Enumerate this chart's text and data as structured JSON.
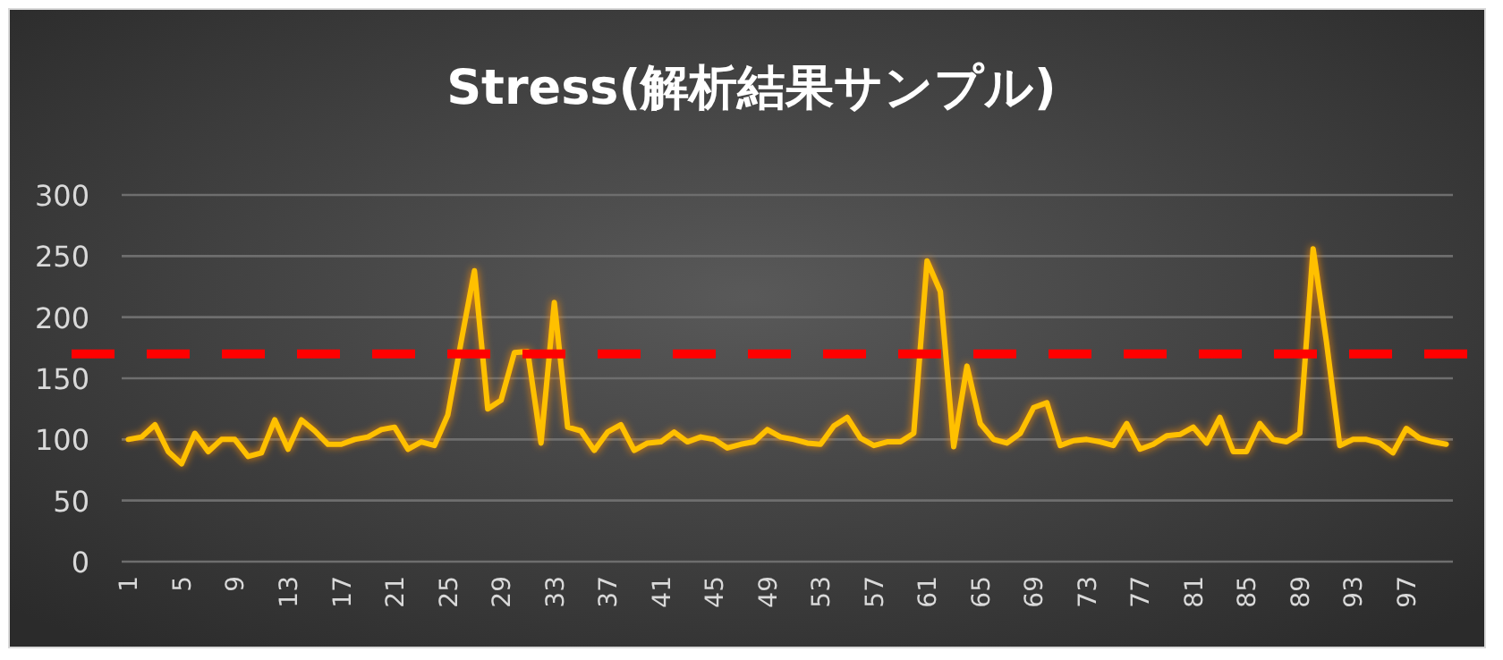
{
  "chart_data": {
    "type": "line",
    "title": "Stress(解析結果サンプル)",
    "categories": [
      "1",
      null,
      null,
      null,
      "5",
      null,
      null,
      null,
      "9",
      null,
      null,
      null,
      "13",
      null,
      null,
      null,
      "17",
      null,
      null,
      null,
      "21",
      null,
      null,
      null,
      "25",
      null,
      null,
      null,
      "29",
      null,
      null,
      null,
      "33",
      null,
      null,
      null,
      "37",
      null,
      null,
      null,
      "41",
      null,
      null,
      null,
      "45",
      null,
      null,
      null,
      "49",
      null,
      null,
      null,
      "53",
      null,
      null,
      null,
      "57",
      null,
      null,
      null,
      "61",
      null,
      null,
      null,
      "65",
      null,
      null,
      null,
      "69",
      null,
      null,
      null,
      "73",
      null,
      null,
      null,
      "77",
      null,
      null,
      null,
      "81",
      null,
      null,
      null,
      "85",
      null,
      null,
      null,
      "89",
      null,
      null,
      null,
      "93",
      null,
      null,
      null,
      "97",
      null,
      null,
      null
    ],
    "values": [
      100,
      102,
      112,
      90,
      80,
      105,
      90,
      100,
      100,
      86,
      89,
      116,
      92,
      116,
      107,
      96,
      96,
      100,
      102,
      108,
      110,
      92,
      98,
      95,
      120,
      180,
      238,
      125,
      132,
      171,
      172,
      97,
      212,
      110,
      107,
      91,
      106,
      112,
      91,
      97,
      98,
      106,
      98,
      102,
      100,
      93,
      96,
      98,
      108,
      102,
      100,
      97,
      96,
      111,
      118,
      101,
      95,
      98,
      98,
      105,
      246,
      221,
      94,
      160,
      113,
      100,
      97,
      105,
      126,
      130,
      95,
      99,
      100,
      98,
      95,
      113,
      92,
      96,
      103,
      104,
      110,
      97,
      118,
      90,
      90,
      113,
      100,
      98,
      105,
      256,
      180,
      95,
      100,
      100,
      97,
      89,
      109,
      101,
      98,
      96
    ],
    "color": "#ffc000",
    "ylim": [
      0,
      300
    ],
    "yticks": [
      0,
      50,
      100,
      150,
      200,
      250,
      300
    ],
    "grid": "y",
    "ref_lines": [
      {
        "axis": "y",
        "value": 170,
        "color": "#ff0000",
        "line_style": "dashed"
      }
    ]
  }
}
